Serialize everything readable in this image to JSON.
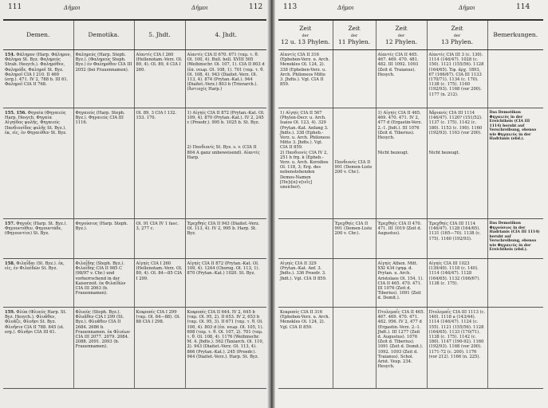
{
  "left_page": {
    "page_left": "111",
    "page_right": "112",
    "running_head_left": "Δῆμοι",
    "running_head_right": "Δῆμοι",
    "headers": [
      "Demen.",
      "Demotika.",
      "5. Jhdt.",
      "4. Jhdt."
    ],
    "rows": [
      {
        "num": "154.",
        "cells": [
          "Φάληρον (Harp. Φάληρον, Φάληρα St. Byz. Φαληρεύς Strab. Hesych.). Φαληρόθεν, Φαληρόδε, Φαληροῖ St. Byz. Φαληροῖ CIA I 210. II 469 (erg.). 471. IV 2, 788 b. III 61. Φαληροῖ CIA II 768.",
          "Φαληρεύς (Harp. Steph. Byz.). (Φαληρεύς Steph. Byz.) ἐν Φαληρόθεν CIA III 2052 (bei Frauennamen).",
          "Αἰαντίς CIA I 260 (Hellenotam.-Verz. Ol. 89, 4). Ol. 89, 4 CIA I 260.",
          "Αἰαντίς CIA II 670. 671 (ταμ. τ. θ. Ol. 100, 4). Bull. hell. XVIII 505 (Weihinschr. Ol. 107, 1). CIA II 803 d (ἐπ. νεωρ. Ol. 108, 1). 701 (ταμ. τ. θ. Ol. 108, 4). 943 (Diaitet.-Verz. Ol. 113, 4). 874 (Prytan.-Kat.). 944 (Diaitet.-Verz.) 803 b (Trierarch.). (Ἀντιοχίς Harp.)"
        ]
      },
      {
        "num": "155. 156.",
        "cells": [
          "Φηγαία (Φηγαιεύς Harp. Hesych. Φηγαία Αἰγηίδος φυλῆς, Φηγαιεύς Πανδιονίδος φυλῆς St. Byz.). ἐκ, εἰς, ἐν Φηγαιόθεν St. Byz.",
          "Φηγαιεύς (Harp. Steph. Byz.). Φηγαιεύς CIA III 1116.",
          "Ol. 89, 3 CIA I 132. 153. 170.",
          "1) Αἰγηίς CIA II 872 (Prytan.-Kat. Ol. 109, 4). 870 (Prytan.-Kat.). IV 2, 245 c (Proedr.). 995 b. 1025 b. St. Byz.\n\n\n\n\n2) Πανδιονίς St. Byz. s. v. (CIA II 804 A ganz unbeweisend). Αἰαντίς Harp."
        ]
      },
      {
        "num": "157.",
        "cells": [
          "Φηγοῦς (Harp. St. Byz.). Φηγουντόθεν, Φηγουντάδε, (Φηγουντίοι) St. Byz.",
          "Φηγούσιος (Harp. Steph. Byz.).",
          "Ol. 91 CIA IV 1 fasc. 3, 277 c.",
          "Ἐρεχθηίς CIA II 943 (Diaitet.-Verz. Ol. 113, 4). IV 2, 995 b. Harp. St. Byz."
        ]
      },
      {
        "num": "158.",
        "cells": [
          "Φιλαΐδαι (St. Byz.). ἐκ, εἰς, ἐν Φιλαϊδῶν St. Byz.",
          "Φιλαΐδης (Steph. Byz.). Φιλαΐδης CIA II 985 C (98/97 v. Chr.) und vorherrschend in der Kaiserzeit. ἐκ Φιλαϊδῶν CIA III 2063 (b. Frauennamen).",
          "Αἰγηίς CIA I 260 (Hellenotam.-Verz. Ol. 89, 4). Ol. 84—85 CIA I 299.",
          "Αἰγηίς CIA II 872 (Prytan.-Kat. Ol. 109, 4). 1244 (Choreg. Ol. 113, 1). 870 (Prytan.-Kat.) 1020. St. Byz."
        ]
      },
      {
        "num": "159.",
        "cells": [
          "Φλύα (Φλυεύς Harp. St. Byz. Hesych.). Φλυᾶθεν, Φλυᾶζε, Φλυῆσι St. Byz. Φλυῆσιν CIA II 788. 845 (st. erg.). Φλυῆσι CIA III 61.",
          "Φλυεύς (Steph. Byz.). Φλυᾶθεν CIA I 299 (St. Byz.). Φλυᾶθεν CIA II 2684. 2686 b. Frauennamen. ἐκ Φλυέων CIA III 2077. 2079. 2084. 2088. 2091. 2093 (b. Frauennamen).",
          "Κεκροπίς CIA I 299 (ταμ. Ol. 84—88). Ol. 88 CIA I 298.",
          "Κεκροπίς CIA II 644. IV 2, 645 b (ταμ. Ol. 95, 2). II 653. IV 2, 653 b (ταμ. Ol. 95, 3). II 671 (ταμ. τ. θ. Ol. 100, 4). 803 d (ἐπ. νεωρ. Ol. 105, 1). 698 (ταμ. τ. θ. Ol. 107, 2). 701 (ταμ. τ. θ. Ol. 108, 4). 1176 (Weihinschr. M. 4. Jhdts.). 562 (Taxiarch. Ol. 110, 2). 943 (Diaitet.-Verz. Ol. 113, 4). 866 (Prytan.-Kat.). 245 (Proedr.). 944 (Diaitet.-Verz.). Harp. St. Byz."
        ]
      }
    ]
  },
  "right_page": {
    "page_left": "113",
    "page_right": "114",
    "running_head_left": "Δῆμοι",
    "running_head_right": "Δῆμοι",
    "headers": [
      {
        "top": "Zeit",
        "mid": "der",
        "bottom": "12 u. 13 Phylen."
      },
      {
        "top": "Zeit",
        "mid": "der",
        "bottom": "11 Phylen."
      },
      {
        "top": "Zeit",
        "mid": "der",
        "bottom": "12 Phylen."
      },
      {
        "top": "Zeit",
        "mid": "der",
        "bottom": "13 Phylen."
      },
      {
        "top": "",
        "mid": "",
        "bottom": "Bemerkungen."
      }
    ],
    "rows": [
      {
        "cells": [
          "Αἰαντίς CIA II 316 (Epheben-Verz. u. Arch. Menekles Ol. 124, 2). 338 (Epheben-Verz. u. Arch. Philoneos Mitte 3. Jhdts.). Vgl. CIA II 859.",
          "",
          "Αἰαντίς CIA II 465. 467. 469. 470. 481. 482. III 1092. 1093 (Zeit d. Traianus). Hesych.",
          "Αἰαντίς CIA III 3 (c. 130). 1114 (146/47). 1028 (c. 150). 1121 (155/56). 1128 (164/65). Ἐφ. ἀρχ. 1893, 67 (166/67). CIA III 1133 (170/71). 1134 (c. 170). 1138 (c. 175). 1160 (192/93). 1168 (vor 200). 1177 (n. 212).",
          ""
        ]
      },
      {
        "cells": [
          "1) Αἰγηίς CIA II 567 (Phylen-Decr. u. Arch. Isaios Ol. 123, 4). 329 (Prytan.-Kat. Anfang 3. Jhdts.). 338 (Epheb.-Verz. u. Arch. Philoneos Mitte 3. Jhdts.). Vgl. CIA II 859.\n2) Πανδιονίς CIA IV 2, 251 b frg. k (Epheb.-Verz. u. Arch. Koroibos Ol. 118, 3; Erg. des nebenstehenden Demos-Namen [Πα]ι[α]-ν[ιεῖς] unsicher).",
          "\n\n\n\n\n\n\n\n\n\nΠανδιονίς CIA II 991 (Demen-Liste 200 v. Chr.).",
          "1) Αἰγηίς CIA II 465. 469. 470. 471. IV 2, 477 d (Ergastin-Verz. 2.-1. Jhdt.). III 1076 (Zeit d. Tiberius). Hesych.\n\n\nNicht bezeugt.",
          "Ἀδριανίς CIA III 1114 (146/47). 1120? (151/52). 1137 (c. 175). 1142 (c. 180). 1153 (c. 190). 1160 (192/93). 1163 (vor 200).\n\n\n\nNicht bezeugt.",
          "Das Demotikon Φηγαιεύς in der Ereichtheis (CIA III 1114) beruht auf Verschreibung, ebenso wie Φηγαιεύς in der Hadrianis (ebd.)."
        ]
      },
      {
        "cells": [
          "",
          "Ἐρεχθηίς CIA II 991 (Demen-Liste 200 v. Chr.).",
          "Ἐρεχθηίς CIA II 470. 471. III 1019 (Zeit d. Augustus).",
          "Ἐρεχθηίς CIA III 1114 (146/47). 1128 (164/65). 1131 (165—70). 1138 (c. 175). 1160 (192/93).",
          "Das Demotikon Φηγούσιος in der Hadrianis (CIA III 1114) beruht auf Verschreibung, ebenso wie Φηγαιεύς in der Ereichtheis (ebd.)."
        ]
      },
      {
        "cells": [
          "Αἰγηίς CIA II 329 (Prytan.-Kat. Anf. 3. Jhdts.). 336 Proedr. 3. Jhdt.). Vgl. CIA II 859.",
          "",
          "Αἰγηίς Athen. Mitt. XXI 434 (ψηφ. d. Prytan. u. Arch. Aristolaos Ol. 154, 1). CIA II 465. 470. 471. III 1076 (Zeit d. Tiberius). 1091 (Zeit d. Domit.).",
          "Αἰγηίς CIA III 1023 (139/40). 1118 (c. 140). 1114 (146/47). 1128 (164/65). 1132 (166/67). 1138 (c. 175).",
          ""
        ]
      },
      {
        "cells": [
          "Κεκροπίς CIA II 316 (Epheben-Verz. u. Arch. Menekles Ol. 124, 2). Vgl. CIA II 859.",
          "",
          "Πτολεμαΐς CIA II 465. 467. 469. 470. 471. 482. 956. IV 2, 477 d (Ergastin.-Verz. 2.-1. Jhdt.). III 1277 (Zeit d. Augustus). 1076 (Zeit d. Tiberius). 1091 (Zeit d. Domit.). 1092. 1093 (Zeit d. Traianus). Schol. Arist. Vesp. 234. Hesych.",
          "Πτολεμαΐς CIA III 1113 (c. 140). 1118 a (143/44). 1114 (146/47). 1124 (c. 155). 1121 (155/56). 1128 (164/65). 1133 (170/71). 1138 (c. 175). 1142 (c. 180). 1147 (190-92). 1160 (192/93). 1168 (vor 200). 1171-72 (c. 200). 1176 (vor 212). 1166 (n. 225).",
          ""
        ]
      }
    ]
  }
}
